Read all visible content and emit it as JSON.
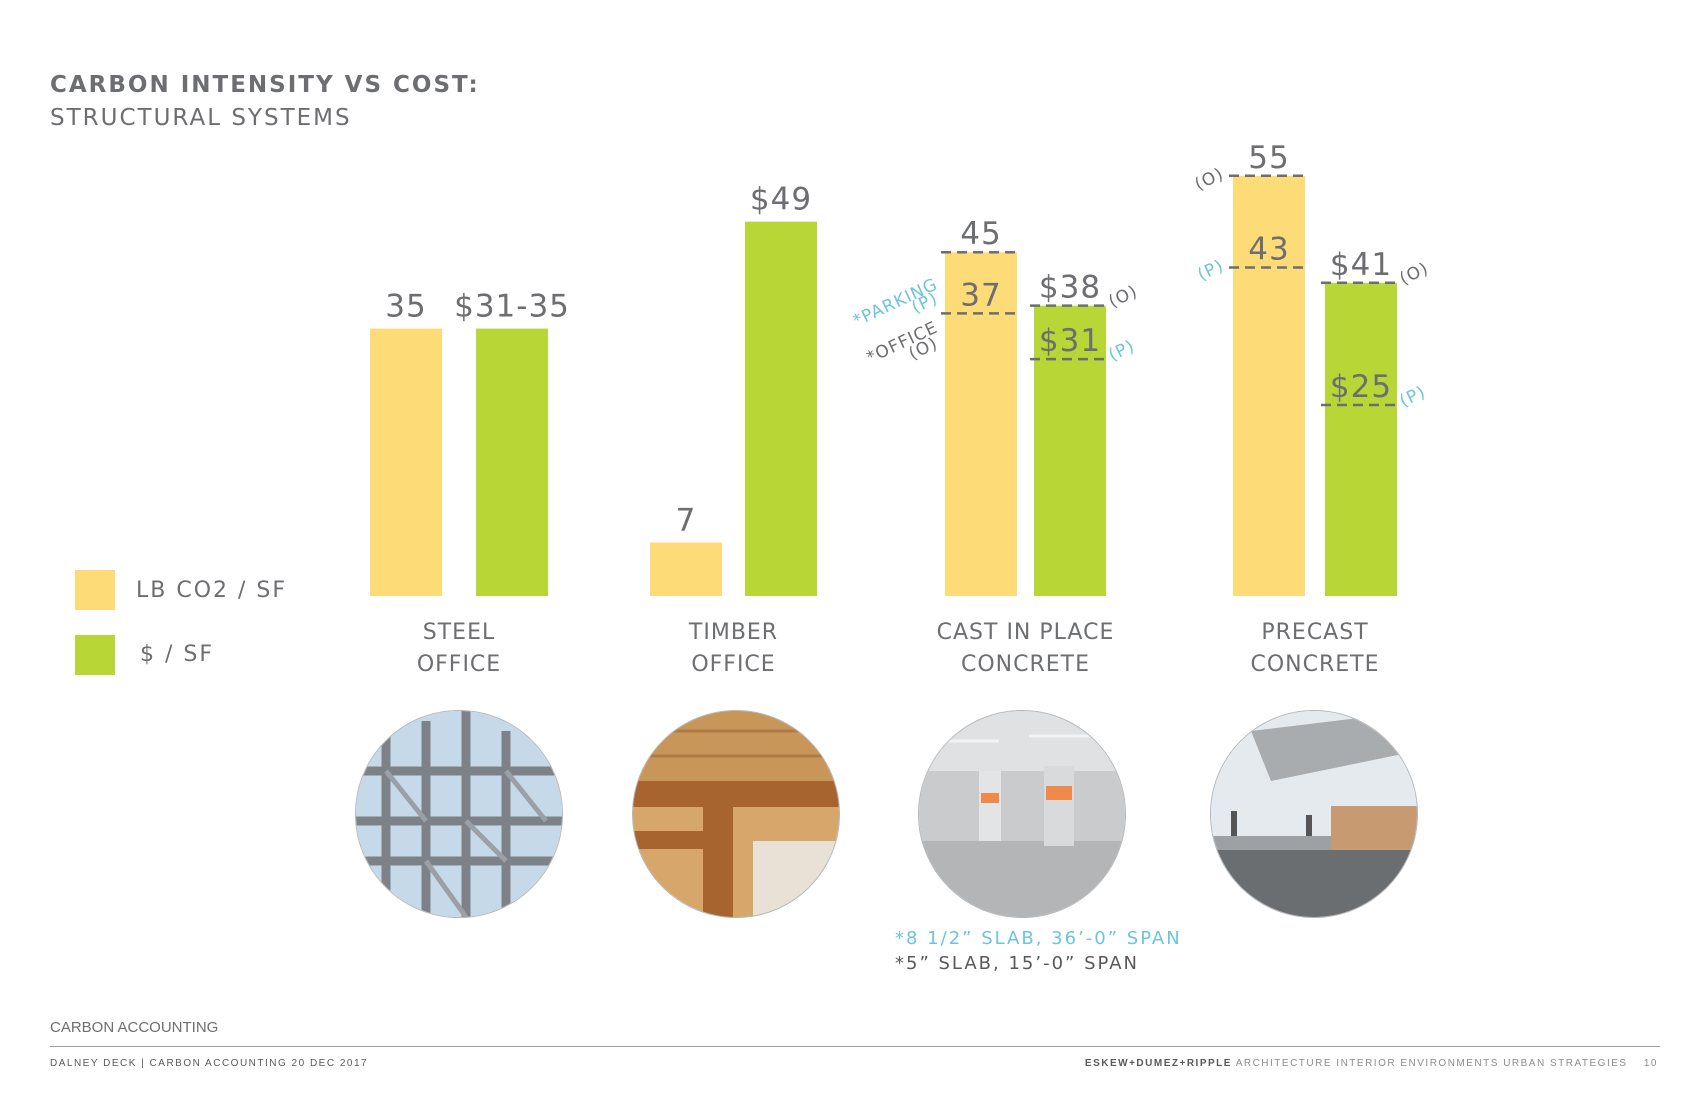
{
  "header": {
    "title": "CARBON INTENSITY VS COST:",
    "subtitle": "STRUCTURAL SYSTEMS"
  },
  "legend": [
    {
      "label": "LB CO2 / SF",
      "color": "#fddc78"
    },
    {
      "label": "$ / SF",
      "color": "#b8d636"
    }
  ],
  "chart_data": {
    "type": "bar",
    "series": [
      {
        "name": "LB CO2 / SF",
        "color": "#fddc78"
      },
      {
        "name": "$ / SF",
        "color": "#b8d636"
      }
    ],
    "categories": [
      {
        "name": [
          "STEEL",
          "OFFICE"
        ],
        "carbon": {
          "value": 35,
          "label": "35"
        },
        "cost": {
          "value": 35,
          "label": "$31-35"
        }
      },
      {
        "name": [
          "TIMBER",
          "OFFICE"
        ],
        "carbon": {
          "value": 7,
          "label": "7"
        },
        "cost": {
          "value": 49,
          "label": "$49"
        }
      },
      {
        "name": [
          "CAST IN PLACE",
          "CONCRETE"
        ],
        "carbon": {
          "value": 45,
          "label": "45",
          "markers": [
            {
              "value": 45,
              "label": "45",
              "tag": "(P)"
            },
            {
              "value": 37,
              "label": "37",
              "tag": "(O)"
            }
          ],
          "side_notes": [
            "*PARKING",
            "*OFFICE"
          ]
        },
        "cost": {
          "value": 38,
          "label": "$38",
          "markers": [
            {
              "value": 38,
              "label": "$38",
              "tag": "(O)"
            },
            {
              "value": 31,
              "label": "$31",
              "tag": "(P)"
            }
          ]
        }
      },
      {
        "name": [
          "PRECAST",
          "CONCRETE"
        ],
        "carbon": {
          "value": 55,
          "label": "55",
          "markers": [
            {
              "value": 55,
              "label": "55",
              "tag": "(O)"
            },
            {
              "value": 43,
              "label": "43",
              "tag": "(P)"
            }
          ]
        },
        "cost": {
          "value": 41,
          "label": "$41",
          "markers": [
            {
              "value": 41,
              "label": "$41",
              "tag": "(O)"
            },
            {
              "value": 25,
              "label": "$25",
              "tag": "(P)"
            }
          ]
        }
      }
    ],
    "ylim": [
      0,
      55
    ],
    "grid": false,
    "legend_position": "left"
  },
  "photos": [
    "steel-frame-photo",
    "timber-structure-photo",
    "parking-garage-photo",
    "precast-beam-photo"
  ],
  "notes": {
    "parking_slab": "*8 1/2” SLAB, 36’-0” SPAN",
    "office_slab": "*5” SLAB, 15’-0” SPAN"
  },
  "colors": {
    "accent_blue": "#6cc5dc",
    "text_gray": "#6d6e71",
    "dash": "#6d6e71"
  },
  "footer": {
    "section": "CARBON ACCOUNTING",
    "left": "DALNEY DECK | CARBON ACCOUNTING  20 DEC 2017",
    "firm": "ESKEW+DUMEZ+RIPPLE",
    "tagline": "ARCHITECTURE  INTERIOR ENVIRONMENTS  URBAN STRATEGIES",
    "page": "10"
  }
}
